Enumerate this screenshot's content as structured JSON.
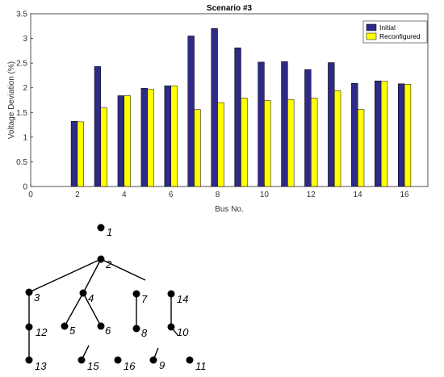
{
  "chart_data": {
    "type": "bar",
    "title": "Scenario #3",
    "xlabel": "Bus No.",
    "ylabel": "Voltage Deviation (%)",
    "xlim": [
      0,
      17
    ],
    "ylim": [
      0,
      3.5
    ],
    "xticks": [
      0,
      2,
      4,
      6,
      8,
      10,
      12,
      14,
      16
    ],
    "yticks": [
      0,
      0.5,
      1,
      1.5,
      2,
      2.5,
      3,
      3.5
    ],
    "x": [
      2,
      3,
      4,
      5,
      6,
      7,
      8,
      9,
      10,
      11,
      12,
      13,
      14,
      15,
      16
    ],
    "series": [
      {
        "name": "Initial",
        "color": "#2e2a86",
        "values": [
          1.32,
          2.43,
          1.84,
          1.99,
          2.04,
          3.05,
          3.2,
          2.81,
          2.52,
          2.53,
          2.37,
          2.51,
          2.09,
          2.14,
          2.08
        ]
      },
      {
        "name": "Reconfigured",
        "color": "#ffff00",
        "values": [
          1.31,
          1.59,
          1.84,
          1.97,
          2.04,
          1.56,
          1.7,
          1.79,
          1.74,
          1.76,
          1.79,
          1.94,
          1.56,
          2.13,
          2.07
        ]
      }
    ],
    "legend_position": "top-right",
    "grid": false
  },
  "network": {
    "nodes": [
      "1",
      "2",
      "3",
      "4",
      "5",
      "6",
      "7",
      "8",
      "9",
      "10",
      "11",
      "12",
      "13",
      "14",
      "15",
      "16"
    ]
  }
}
